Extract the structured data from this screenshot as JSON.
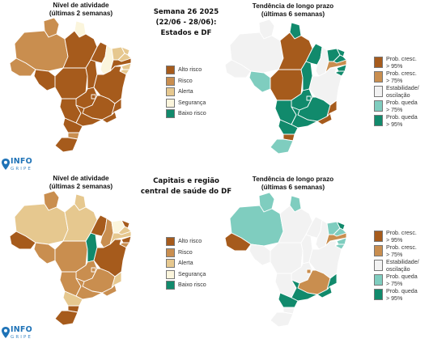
{
  "bulletin": {
    "week_title": [
      "Semana 26 2025",
      "(22/06 - 28/06):",
      "Estados e DF"
    ],
    "capitals_title": [
      "Capitais e região",
      "central de saúde do DF"
    ]
  },
  "headings": {
    "activity": [
      "Nível de atividade",
      "(últimas 2 semanas)"
    ],
    "trend": [
      "Tendência de longo prazo",
      "(últimas 6 semanas)"
    ]
  },
  "activity_legend": [
    {
      "label": "Alto risco",
      "color": "#a65b1c"
    },
    {
      "label": "Risco",
      "color": "#c98e4f"
    },
    {
      "label": "Alerta",
      "color": "#e6c88f"
    },
    {
      "label": "Segurança",
      "color": "#fbf5dc"
    },
    {
      "label": "Baixo risco",
      "color": "#118a6c"
    }
  ],
  "trend_legend": [
    {
      "label": "Prob. cresc.\n> 95%",
      "color": "#a65b1c"
    },
    {
      "label": "Prob. cresc.\n> 75%",
      "color": "#c98e4f"
    },
    {
      "label": "Estabilidade/\noscilação",
      "color": "#f2f2f2"
    },
    {
      "label": "Prob. queda\n> 75%",
      "color": "#7fcdbf"
    },
    {
      "label": "Prob. queda\n> 95%",
      "color": "#118a6c"
    }
  ],
  "logo": {
    "main": "INFO",
    "sub": "GRIPE"
  },
  "maps": {
    "states_activity": {
      "AC": "Risco",
      "AM": "Risco",
      "RR": "Risco",
      "AP": "Segurança",
      "PA": "Alto risco",
      "RO": "Alto risco",
      "MT": "Alto risco",
      "TO": "Alto risco",
      "MA": "Alto risco",
      "PI": "Segurança",
      "CE": "Alerta",
      "RN": "Alerta",
      "PB": "Alerta",
      "PE": "Alto risco",
      "AL": "Alerta",
      "SE": "Alerta",
      "BA": "Alto risco",
      "GO": "Alto risco",
      "DF": "Alto risco",
      "MS": "Alto risco",
      "MG": "Alto risco",
      "ES": "Alto risco",
      "RJ": "Alto risco",
      "SP": "Alto risco",
      "PR": "Alto risco",
      "SC": "Risco",
      "RS": "Alto risco"
    },
    "states_trend": {
      "AC": "Estabilidade/oscilação",
      "AM": "Estabilidade/oscilação",
      "RR": "Estabilidade/oscilação",
      "AP": "Prob. queda > 95%",
      "PA": "Prob. cresc. > 95%",
      "RO": "Prob. queda > 75%",
      "MT": "Prob. cresc. > 95%",
      "TO": "Prob. queda > 95%",
      "MA": "Prob. queda > 95%",
      "PI": "Estabilidade/oscilação",
      "CE": "Prob. queda > 95%",
      "RN": "Prob. queda > 95%",
      "PB": "Prob. queda > 95%",
      "PE": "Prob. cresc. > 75%",
      "AL": "Prob. queda > 95%",
      "SE": "Prob. queda > 95%",
      "BA": "Estabilidade/oscilação",
      "GO": "Prob. queda > 95%",
      "DF": "Prob. queda > 95%",
      "MS": "Prob. queda > 95%",
      "MG": "Prob. queda > 95%",
      "ES": "Prob. cresc. > 95%",
      "RJ": "Prob. cresc. > 95%",
      "SP": "Prob. queda > 95%",
      "PR": "Prob. queda > 95%",
      "SC": "Prob. cresc. > 95%",
      "RS": "Prob. queda > 75%"
    },
    "capitals_activity": {
      "AC": "Alto risco",
      "AM": "Alerta",
      "RR": "Risco",
      "AP": "Alerta",
      "PA": "Alerta",
      "RO": "Risco",
      "MT": "Risco",
      "TO": "Baixo risco",
      "MA": "Alto risco",
      "PI": "Risco",
      "CE": "Segurança",
      "RN": "Alto risco",
      "PB": "Alerta",
      "PE": "Alerta",
      "AL": "Alto risco",
      "SE": "Risco",
      "BA": "Alto risco",
      "GO": "Risco",
      "DF": "Risco",
      "MS": "Risco",
      "MG": "Risco",
      "ES": "Alerta",
      "RJ": "Risco",
      "SP": "Risco",
      "PR": "Alerta",
      "SC": "Alto risco",
      "RS": "Alto risco"
    },
    "capitals_trend": {
      "AC": "Prob. cresc. > 95%",
      "AM": "Prob. queda > 75%",
      "RR": "Prob. queda > 75%",
      "AP": "Prob. queda > 75%",
      "PA": "Estabilidade/oscilação",
      "RO": "Estabilidade/oscilação",
      "MT": "Estabilidade/oscilação",
      "TO": "Estabilidade/oscilação",
      "MA": "Estabilidade/oscilação",
      "PI": "Estabilidade/oscilação",
      "CE": "Prob. queda > 75%",
      "RN": "Prob. queda > 95%",
      "PB": "Prob. queda > 75%",
      "PE": "Prob. cresc. > 75%",
      "AL": "Prob. queda > 75%",
      "SE": "Prob. queda > 75%",
      "BA": "Estabilidade/oscilação",
      "GO": "Estabilidade/oscilação",
      "DF": "Prob. cresc. > 75%",
      "MS": "Estabilidade/oscilação",
      "MG": "Prob. cresc. > 75%",
      "ES": "Prob. queda > 95%",
      "RJ": "Prob. queda > 95%",
      "SP": "Prob. queda > 95%",
      "PR": "Prob. queda > 95%",
      "SC": "Estabilidade/oscilação",
      "RS": "Estabilidade/oscilação"
    }
  }
}
